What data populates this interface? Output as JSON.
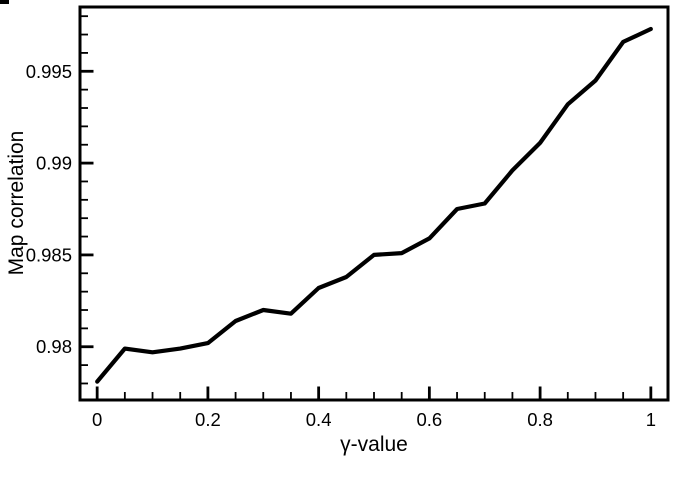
{
  "chart_data": {
    "type": "line",
    "title": "",
    "xlabel": "γ-value",
    "ylabel": "Map correlation",
    "series": [
      {
        "name": "map-correlation",
        "x": [
          0,
          0.05,
          0.1,
          0.15,
          0.2,
          0.25,
          0.3,
          0.35,
          0.4,
          0.45,
          0.5,
          0.55,
          0.6,
          0.65,
          0.7,
          0.75,
          0.8,
          0.85,
          0.9,
          0.95,
          1.0
        ],
        "y": [
          0.9781,
          0.9799,
          0.9797,
          0.9799,
          0.9802,
          0.9814,
          0.982,
          0.9818,
          0.9832,
          0.9838,
          0.985,
          0.9851,
          0.9859,
          0.9875,
          0.9878,
          0.9896,
          0.9911,
          0.9932,
          0.9945,
          0.9966,
          0.9973
        ]
      }
    ],
    "xlim": [
      -0.031,
      1.031
    ],
    "ylim": [
      0.9771,
      0.9985
    ],
    "x_major_ticks": [
      0,
      0.2,
      0.4,
      0.6,
      0.8,
      1
    ],
    "x_major_labels": [
      "0",
      "0.2",
      "0.4",
      "0.6",
      "0.8",
      "1"
    ],
    "x_minor_step": 0.05,
    "y_major_ticks": [
      0.98,
      0.985,
      0.99,
      0.995
    ],
    "y_major_labels": [
      "0.98",
      "0.985",
      "0.99",
      "0.995"
    ],
    "y_minor_step": 0.001,
    "grid": false,
    "legend_position": "none",
    "line_color": "#000000",
    "frame_color": "#000000",
    "text_color": "#000000",
    "background_color": "#ffffff"
  }
}
